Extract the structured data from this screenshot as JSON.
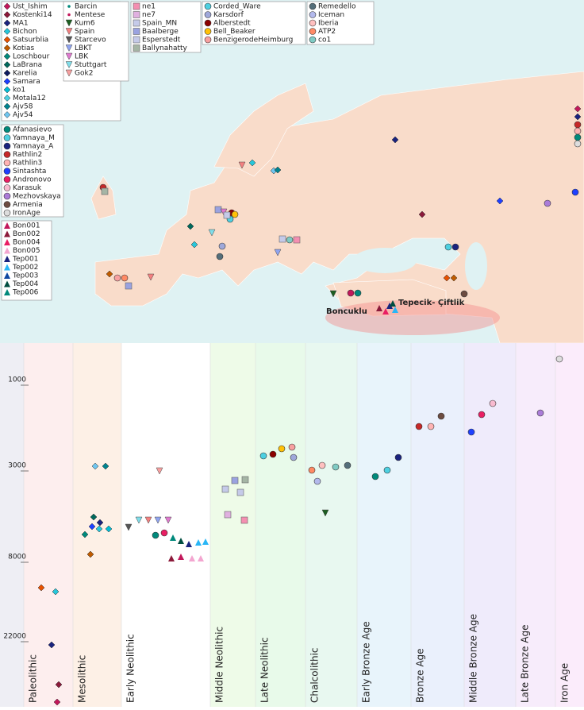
{
  "legends": [
    {
      "items": [
        "Ust_Ishim",
        "Kostenki14",
        "MA1",
        "Bichon",
        "Satsurblia",
        "Kotias",
        "Loschbour",
        "LaBrana",
        "Karelia",
        "Samara",
        "ko1",
        "Motala12",
        "Ajv58",
        "Ajv54"
      ]
    },
    {
      "items": [
        "Afanasievo",
        "Yamnaya_M",
        "Yamnaya_A",
        "Rathlin2",
        "Rathlin3",
        "Sintashta",
        "Andronovo",
        "Karasuk",
        "Mezhovskaya",
        "Armenia",
        "IronAge"
      ]
    },
    {
      "items": [
        "Bon001",
        "Bon002",
        "Bon004",
        "Bon005",
        "Tep001",
        "Tep002",
        "Tep003",
        "Tep004",
        "Tep006"
      ]
    },
    {
      "items": [
        "Barcin",
        "Mentese",
        "Kum6",
        "Spain",
        "Starcevo",
        "LBKT",
        "LBK",
        "Stuttgart",
        "Gok2"
      ]
    },
    {
      "items": [
        "ne1",
        "ne7",
        "Spain_MN",
        "Baalberge",
        "Esperstedt",
        "Ballynahatty"
      ]
    },
    {
      "items": [
        "Corded_Ware",
        "Karsdorf",
        "Alberstedt",
        "Bell_Beaker",
        "BenzigerodeHeimburg"
      ]
    },
    {
      "items": [
        "Remedello",
        "Iceman",
        "Iberia",
        "ATP2",
        "co1"
      ]
    }
  ],
  "map": {
    "labels": [
      "Boncuklu",
      "Tepecik- Çiftlik"
    ]
  },
  "timeline": {
    "axis_ticks": [
      "1000",
      "3000",
      "8000",
      "22000"
    ],
    "periods": [
      "Paleolithic",
      "Mesolithic",
      "Early Neolithic",
      "Middle Neolithic",
      "Late Neolithic",
      "Chalcolithic",
      "Early Bronze Age",
      "Bronze Age",
      "Middle Bronze Age",
      "Late Bronze Age",
      "Iron Age"
    ]
  }
}
